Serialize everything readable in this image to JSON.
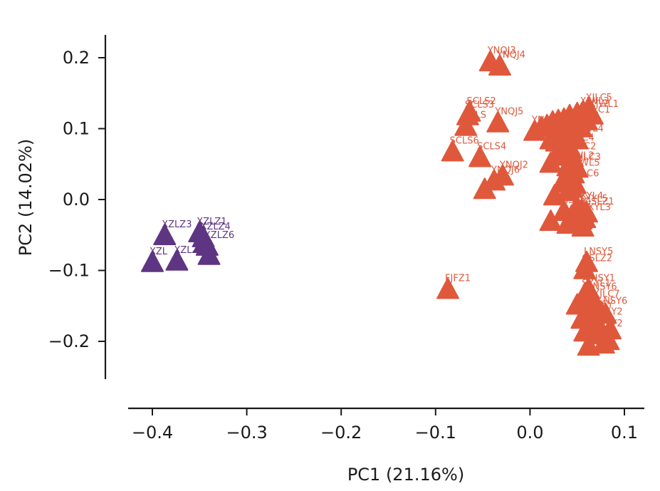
{
  "chart_data": {
    "type": "scatter",
    "title": "",
    "xlabel": "PC1 (21.16%)",
    "ylabel": "PC2 (14.02%)",
    "xlim": [
      -0.425,
      0.12
    ],
    "ylim": [
      -0.255,
      0.232
    ],
    "xticks": [
      -0.4,
      -0.3,
      -0.2,
      -0.1,
      0.0,
      0.1
    ],
    "xtick_labels": [
      "−0.4",
      "−0.3",
      "−0.2",
      "−0.1",
      "0.0",
      "0.1"
    ],
    "yticks": [
      -0.2,
      -0.1,
      0.0,
      0.1,
      0.2
    ],
    "ytick_labels": [
      "−0.2",
      "−0.1",
      "0.0",
      "0.1",
      "0.2"
    ],
    "grid": false,
    "marker": "triangle",
    "series": [
      {
        "color": "#5e3582",
        "points": [
          {
            "x": -0.387,
            "y": -0.052,
            "label": "XZLZ3"
          },
          {
            "x": -0.35,
            "y": -0.048,
            "label": "XZLZ1"
          },
          {
            "x": -0.346,
            "y": -0.055,
            "label": "XZLZ4"
          },
          {
            "x": -0.342,
            "y": -0.067,
            "label": "XZLZ6"
          },
          {
            "x": -0.345,
            "y": -0.063,
            "label": ""
          },
          {
            "x": -0.4,
            "y": -0.09,
            "label": "XZL"
          },
          {
            "x": -0.374,
            "y": -0.088,
            "label": "XZLZ"
          },
          {
            "x": -0.34,
            "y": -0.08,
            "label": ""
          }
        ]
      },
      {
        "color": "#e0583c",
        "points": [
          {
            "x": -0.042,
            "y": 0.193,
            "label": "YNQJ3"
          },
          {
            "x": -0.032,
            "y": 0.187,
            "label": "YNQJ4"
          },
          {
            "x": -0.064,
            "y": 0.122,
            "label": "SCLS2"
          },
          {
            "x": -0.066,
            "y": 0.117,
            "label": "SCLS3"
          },
          {
            "x": -0.068,
            "y": 0.102,
            "label": "SCLS"
          },
          {
            "x": -0.034,
            "y": 0.107,
            "label": "YNQJ5"
          },
          {
            "x": -0.082,
            "y": 0.066,
            "label": "SCLS6"
          },
          {
            "x": -0.053,
            "y": 0.058,
            "label": "SCLS4"
          },
          {
            "x": -0.029,
            "y": 0.032,
            "label": "YNQJ2"
          },
          {
            "x": -0.038,
            "y": 0.025,
            "label": "YNQJ6"
          },
          {
            "x": -0.048,
            "y": 0.013,
            "label": ""
          },
          {
            "x": -0.087,
            "y": -0.128,
            "label": "FJFZ1"
          },
          {
            "x": 0.005,
            "y": 0.095,
            "label": "YN"
          },
          {
            "x": 0.012,
            "y": 0.1,
            "label": ""
          },
          {
            "x": 0.018,
            "y": 0.103,
            "label": ""
          },
          {
            "x": 0.024,
            "y": 0.108,
            "label": ""
          },
          {
            "x": 0.03,
            "y": 0.11,
            "label": ""
          },
          {
            "x": 0.036,
            "y": 0.112,
            "label": ""
          },
          {
            "x": 0.042,
            "y": 0.117,
            "label": ""
          },
          {
            "x": 0.05,
            "y": 0.12,
            "label": ""
          },
          {
            "x": 0.056,
            "y": 0.122,
            "label": "XJWL3"
          },
          {
            "x": 0.062,
            "y": 0.127,
            "label": "XJLC5"
          },
          {
            "x": 0.066,
            "y": 0.118,
            "label": "XJWL1"
          },
          {
            "x": 0.06,
            "y": 0.11,
            "label": "XJLC1"
          },
          {
            "x": 0.054,
            "y": 0.1,
            "label": ""
          },
          {
            "x": 0.046,
            "y": 0.093,
            "label": ""
          },
          {
            "x": 0.04,
            "y": 0.09,
            "label": ""
          },
          {
            "x": 0.033,
            "y": 0.085,
            "label": ""
          },
          {
            "x": 0.028,
            "y": 0.08,
            "label": ""
          },
          {
            "x": 0.022,
            "y": 0.083,
            "label": ""
          },
          {
            "x": 0.05,
            "y": 0.083,
            "label": "XJWL4"
          },
          {
            "x": 0.043,
            "y": 0.07,
            "label": "XJLC4"
          },
          {
            "x": 0.035,
            "y": 0.068,
            "label": ""
          },
          {
            "x": 0.028,
            "y": 0.06,
            "label": ""
          },
          {
            "x": 0.022,
            "y": 0.05,
            "label": ""
          },
          {
            "x": 0.045,
            "y": 0.058,
            "label": "XJLC2"
          },
          {
            "x": 0.04,
            "y": 0.045,
            "label": "XJWL2"
          },
          {
            "x": 0.05,
            "y": 0.043,
            "label": "XJLC3"
          },
          {
            "x": 0.046,
            "y": 0.035,
            "label": "XJWL5"
          },
          {
            "x": 0.038,
            "y": 0.03,
            "label": ""
          },
          {
            "x": 0.034,
            "y": 0.022,
            "label": ""
          },
          {
            "x": 0.048,
            "y": 0.02,
            "label": "XJLC6"
          },
          {
            "x": 0.044,
            "y": 0.015,
            "label": ""
          },
          {
            "x": 0.04,
            "y": 0.01,
            "label": ""
          },
          {
            "x": 0.026,
            "y": 0.004,
            "label": ""
          },
          {
            "x": 0.05,
            "y": -0.012,
            "label": "SXYL4"
          },
          {
            "x": 0.055,
            "y": -0.016,
            "label": "SXYL5"
          },
          {
            "x": 0.036,
            "y": -0.018,
            "label": "GSL"
          },
          {
            "x": 0.06,
            "y": -0.02,
            "label": "GSLZ1"
          },
          {
            "x": 0.058,
            "y": -0.028,
            "label": "SXYL3"
          },
          {
            "x": 0.044,
            "y": -0.025,
            "label": ""
          },
          {
            "x": 0.054,
            "y": -0.03,
            "label": ""
          },
          {
            "x": 0.022,
            "y": -0.032,
            "label": ""
          },
          {
            "x": 0.04,
            "y": -0.036,
            "label": ""
          },
          {
            "x": 0.056,
            "y": -0.04,
            "label": ""
          },
          {
            "x": 0.06,
            "y": -0.09,
            "label": "LNSY5"
          },
          {
            "x": 0.058,
            "y": -0.1,
            "label": "GSLZ2"
          },
          {
            "x": 0.062,
            "y": -0.128,
            "label": "LNSY1"
          },
          {
            "x": 0.058,
            "y": -0.135,
            "label": "SXYL1"
          },
          {
            "x": 0.064,
            "y": -0.14,
            "label": "LNSY6"
          },
          {
            "x": 0.055,
            "y": -0.145,
            "label": ""
          },
          {
            "x": 0.05,
            "y": -0.15,
            "label": ""
          },
          {
            "x": 0.07,
            "y": -0.15,
            "label": "XJLC7"
          },
          {
            "x": 0.06,
            "y": -0.16,
            "label": ""
          },
          {
            "x": 0.075,
            "y": -0.16,
            "label": "LNSY6"
          },
          {
            "x": 0.066,
            "y": -0.165,
            "label": "LNSY"
          },
          {
            "x": 0.08,
            "y": -0.163,
            "label": ""
          },
          {
            "x": 0.055,
            "y": -0.17,
            "label": ""
          },
          {
            "x": 0.07,
            "y": -0.175,
            "label": "LNSY2"
          },
          {
            "x": 0.062,
            "y": -0.18,
            "label": ""
          },
          {
            "x": 0.075,
            "y": -0.185,
            "label": ""
          },
          {
            "x": 0.085,
            "y": -0.185,
            "label": ""
          },
          {
            "x": 0.058,
            "y": -0.188,
            "label": ""
          },
          {
            "x": 0.07,
            "y": -0.192,
            "label": "LNSY2"
          },
          {
            "x": 0.062,
            "y": -0.208,
            "label": ""
          },
          {
            "x": 0.078,
            "y": -0.205,
            "label": ""
          },
          {
            "x": 0.083,
            "y": -0.2,
            "label": ""
          }
        ]
      }
    ]
  }
}
